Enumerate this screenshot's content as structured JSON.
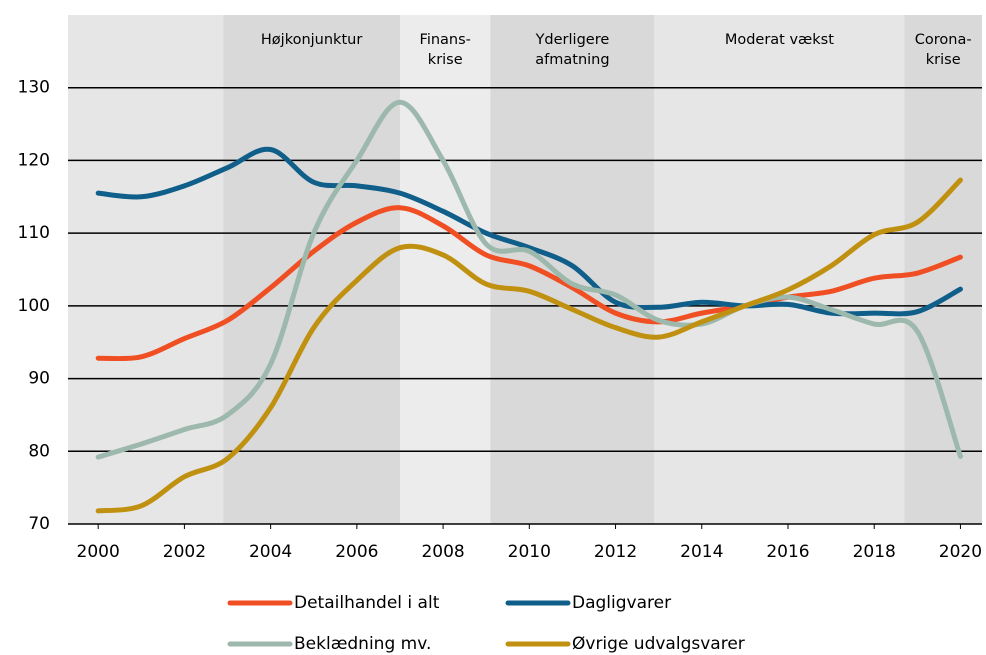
{
  "chart_data": {
    "type": "line",
    "x": [
      2000,
      2001,
      2002,
      2003,
      2004,
      2005,
      2006,
      2007,
      2008,
      2009,
      2010,
      2011,
      2012,
      2013,
      2014,
      2015,
      2016,
      2017,
      2018,
      2019,
      2020
    ],
    "xlim": [
      1999.3,
      2020.5
    ],
    "xticks": [
      2000,
      2002,
      2004,
      2006,
      2008,
      2010,
      2012,
      2014,
      2016,
      2018,
      2020
    ],
    "ylim": [
      70,
      140
    ],
    "yticks": [
      70,
      80,
      90,
      100,
      110,
      120,
      130
    ],
    "grid": true,
    "periods": [
      {
        "label": [],
        "start": 1999.3,
        "end": 2002.9,
        "color": "#e6e6e6"
      },
      {
        "label": [
          "Højkonjunktur"
        ],
        "start": 2002.9,
        "end": 2007.0,
        "color": "#d9d9d9"
      },
      {
        "label": [
          "Finans-",
          "krise"
        ],
        "start": 2007.0,
        "end": 2009.1,
        "color": "#ececec"
      },
      {
        "label": [
          "Yderligere",
          "afmatning"
        ],
        "start": 2009.1,
        "end": 2012.9,
        "color": "#d9d9d9"
      },
      {
        "label": [
          "Moderat vækst"
        ],
        "start": 2012.9,
        "end": 2018.7,
        "color": "#e6e6e6"
      },
      {
        "label": [
          "Corona-",
          "krise"
        ],
        "start": 2018.7,
        "end": 2020.5,
        "color": "#d9d9d9"
      }
    ],
    "series": [
      {
        "name": "Detailhandel i alt",
        "color": "#f04e23",
        "values": [
          92.8,
          93,
          95.5,
          98,
          102.5,
          107.5,
          111.5,
          113.5,
          111,
          107,
          105.5,
          102.5,
          99,
          97.8,
          99,
          100,
          101.2,
          102,
          103.8,
          104.5,
          106.7
        ]
      },
      {
        "name": "Dagligvarer",
        "color": "#0f5f8a",
        "values": [
          115.5,
          115,
          116.5,
          119,
          121.5,
          117,
          116.5,
          115.5,
          113,
          110,
          108,
          105.5,
          100.5,
          99.8,
          100.5,
          100,
          100.2,
          99,
          99,
          99.2,
          102.3
        ]
      },
      {
        "name": "Beklædning mv.",
        "color": "#9db8ad",
        "values": [
          79.2,
          81,
          83,
          85,
          92,
          110,
          120,
          128,
          120,
          108.5,
          107.5,
          103,
          101.5,
          98,
          97.5,
          100,
          101.2,
          99.5,
          97.5,
          96.5,
          79.3
        ]
      },
      {
        "name": "Øvrige udvalgsvarer",
        "color": "#c09010",
        "values": [
          71.8,
          72.5,
          76.5,
          79,
          86,
          97,
          103.5,
          108,
          107,
          103,
          102,
          99.5,
          97,
          95.7,
          97.8,
          100,
          102.2,
          105.5,
          109.8,
          111.5,
          117.3
        ]
      }
    ]
  }
}
